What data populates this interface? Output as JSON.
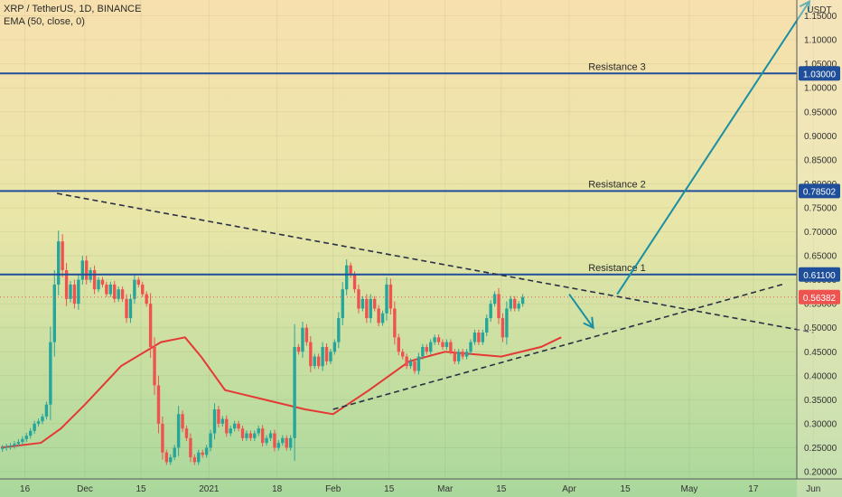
{
  "header": {
    "symbol_line": "XRP / TetherUS, 1D, BINANCE",
    "indicator_line": "EMA (50, close, 0)"
  },
  "chart_data": {
    "type": "candlestick",
    "currency_label": "USDT",
    "yaxis": {
      "ticks": [
        "0.20000",
        "0.25000",
        "0.30000",
        "0.35000",
        "0.40000",
        "0.45000",
        "0.50000",
        "0.55000",
        "0.60000",
        "0.65000",
        "0.70000",
        "0.75000",
        "0.80000",
        "0.85000",
        "0.90000",
        "0.95000",
        "1.00000",
        "1.05000",
        "1.10000",
        "1.15000"
      ]
    },
    "xaxis": {
      "ticks": [
        {
          "label": "16",
          "date": "2020-11-16"
        },
        {
          "label": "Dec",
          "date": "2020-12-01"
        },
        {
          "label": "15",
          "date": "2020-12-15"
        },
        {
          "label": "2021",
          "date": "2021-01-01"
        },
        {
          "label": "18",
          "date": "2021-01-18"
        },
        {
          "label": "Feb",
          "date": "2021-02-01"
        },
        {
          "label": "15",
          "date": "2021-02-15"
        },
        {
          "label": "Mar",
          "date": "2021-03-01"
        },
        {
          "label": "15",
          "date": "2021-03-15"
        },
        {
          "label": "Apr",
          "date": "2021-04-01"
        },
        {
          "label": "15",
          "date": "2021-04-15"
        },
        {
          "label": "May",
          "date": "2021-05-01"
        },
        {
          "label": "17",
          "date": "2021-05-17"
        },
        {
          "label": "Jun",
          "date": "2021-06-01"
        }
      ]
    },
    "closes": [
      0.25,
      0.252,
      0.254,
      0.258,
      0.262,
      0.268,
      0.275,
      0.285,
      0.3,
      0.305,
      0.315,
      0.34,
      0.47,
      0.59,
      0.68,
      0.62,
      0.56,
      0.59,
      0.55,
      0.6,
      0.64,
      0.6,
      0.62,
      0.58,
      0.6,
      0.59,
      0.57,
      0.59,
      0.56,
      0.58,
      0.56,
      0.52,
      0.56,
      0.6,
      0.59,
      0.57,
      0.55,
      0.46,
      0.38,
      0.3,
      0.24,
      0.22,
      0.23,
      0.25,
      0.32,
      0.29,
      0.27,
      0.23,
      0.22,
      0.24,
      0.235,
      0.25,
      0.28,
      0.33,
      0.3,
      0.31,
      0.28,
      0.29,
      0.3,
      0.29,
      0.27,
      0.28,
      0.27,
      0.28,
      0.29,
      0.26,
      0.27,
      0.28,
      0.25,
      0.26,
      0.27,
      0.25,
      0.27,
      0.46,
      0.45,
      0.5,
      0.47,
      0.42,
      0.44,
      0.42,
      0.46,
      0.43,
      0.45,
      0.47,
      0.52,
      0.58,
      0.63,
      0.61,
      0.58,
      0.54,
      0.56,
      0.52,
      0.56,
      0.54,
      0.51,
      0.53,
      0.59,
      0.54,
      0.48,
      0.45,
      0.44,
      0.42,
      0.43,
      0.41,
      0.44,
      0.46,
      0.45,
      0.47,
      0.48,
      0.47,
      0.46,
      0.47,
      0.45,
      0.43,
      0.45,
      0.44,
      0.45,
      0.47,
      0.49,
      0.47,
      0.49,
      0.52,
      0.55,
      0.57,
      0.52,
      0.48,
      0.54,
      0.56,
      0.54,
      0.55,
      0.564
    ],
    "ema": {
      "name": "EMA (50, close, 0)",
      "points": [
        {
          "date": "2020-11-10",
          "value": 0.25
        },
        {
          "date": "2020-11-20",
          "value": 0.26
        },
        {
          "date": "2020-11-25",
          "value": 0.29
        },
        {
          "date": "2020-12-01",
          "value": 0.34
        },
        {
          "date": "2020-12-10",
          "value": 0.42
        },
        {
          "date": "2020-12-20",
          "value": 0.47
        },
        {
          "date": "2020-12-26",
          "value": 0.48
        },
        {
          "date": "2020-12-30",
          "value": 0.44
        },
        {
          "date": "2021-01-05",
          "value": 0.37
        },
        {
          "date": "2021-01-15",
          "value": 0.35
        },
        {
          "date": "2021-01-25",
          "value": 0.33
        },
        {
          "date": "2021-02-01",
          "value": 0.32
        },
        {
          "date": "2021-02-10",
          "value": 0.37
        },
        {
          "date": "2021-02-20",
          "value": 0.43
        },
        {
          "date": "2021-03-01",
          "value": 0.45
        },
        {
          "date": "2021-03-15",
          "value": 0.44
        },
        {
          "date": "2021-03-25",
          "value": 0.46
        },
        {
          "date": "2021-03-30",
          "value": 0.48
        }
      ]
    },
    "resistance_levels": [
      {
        "label": "Resistance 3",
        "price_label": "1.03000",
        "value": 1.03
      },
      {
        "label": "Resistance 2",
        "price_label": "0.78502",
        "value": 0.78502
      },
      {
        "label": "Resistance 1",
        "price_label": "0.61100",
        "value": 0.611
      }
    ],
    "current_price": {
      "label": "0.56382",
      "value": 0.56382
    },
    "trendlines": [
      {
        "style": "dashed",
        "from": {
          "date": "2020-11-24",
          "value": 0.78
        },
        "to": {
          "date": "2021-06-01",
          "value": 0.49
        }
      },
      {
        "style": "dashed",
        "from": {
          "date": "2021-02-01",
          "value": 0.33
        },
        "to": {
          "date": "2021-05-25",
          "value": 0.592
        }
      }
    ],
    "arrows": [
      {
        "direction": "down",
        "from": {
          "date": "2021-04-01",
          "value": 0.57
        },
        "to": {
          "date": "2021-04-07",
          "value": 0.5
        }
      },
      {
        "direction": "up",
        "from": {
          "date": "2021-04-13",
          "value": 0.57
        },
        "to": {
          "date": "2021-05-31",
          "value": 1.18
        }
      }
    ],
    "colors": {
      "up": "#26a69a",
      "down": "#ef5350",
      "ema": "#e53935",
      "resistance": "#1f4e9a",
      "trend": "#2a2f45",
      "arrow": "#1a8fa3",
      "current": "#ef5350"
    }
  }
}
